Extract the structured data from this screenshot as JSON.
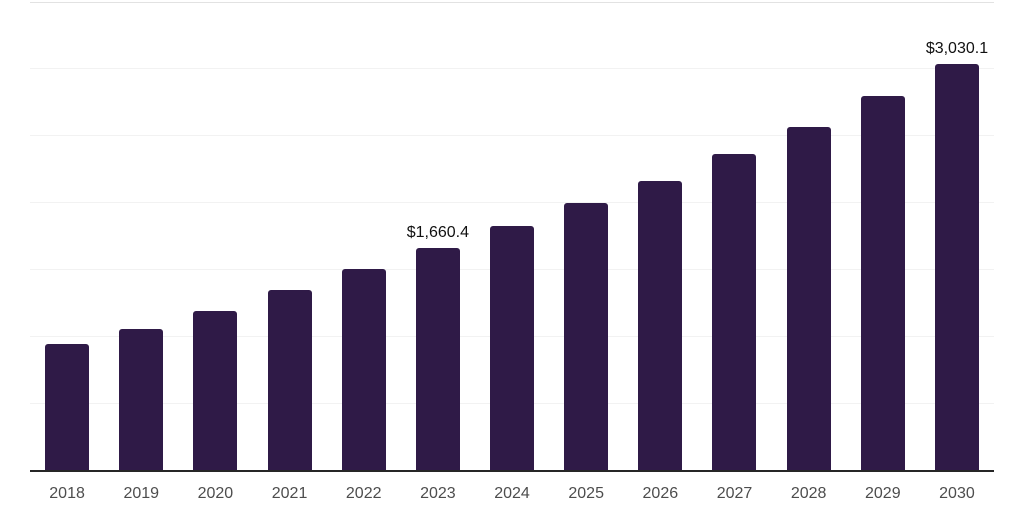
{
  "chart_data": {
    "type": "bar",
    "title": "",
    "xlabel": "",
    "ylabel": "",
    "categories": [
      "2018",
      "2019",
      "2020",
      "2021",
      "2022",
      "2023",
      "2024",
      "2025",
      "2026",
      "2027",
      "2028",
      "2029",
      "2030"
    ],
    "values": [
      940,
      1050,
      1190,
      1345,
      1500,
      1660.4,
      1820,
      1995,
      2160,
      2360,
      2565,
      2795,
      3030.1
    ],
    "data_labels": [
      "",
      "",
      "",
      "",
      "",
      "$1,660.4",
      "",
      "",
      "",
      "",
      "",
      "",
      "$3,030.1"
    ],
    "ylim": [
      0,
      3500
    ],
    "gridline_step": 500,
    "grid": "horizontal",
    "legend": "none",
    "y_tick_labels_visible": false,
    "colors": {
      "bar": "#2f1a47",
      "background": "#ffffff",
      "gridline": "#f2f2f2",
      "top_gridline": "#e2e2e2",
      "axis_line": "#262626",
      "tick_label": "#4d4d4d",
      "data_label": "#111111"
    }
  }
}
